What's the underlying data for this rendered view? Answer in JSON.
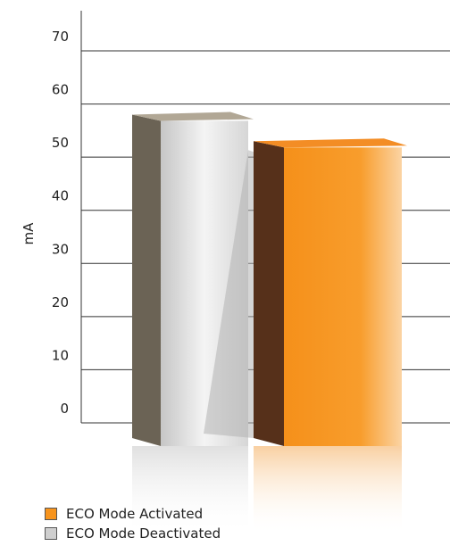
{
  "chart_data": {
    "type": "bar",
    "title": "",
    "xlabel": "",
    "ylabel": "mA",
    "ylim": [
      0,
      70
    ],
    "yticks": [
      0,
      10,
      20,
      30,
      40,
      50,
      60,
      70
    ],
    "grid": true,
    "legend_position": "bottom-left",
    "series": [
      {
        "name": "ECO Mode Deactivated",
        "value": 58,
        "color": "#d9d9d9"
      },
      {
        "name": "ECO Mode Activated",
        "value": 53,
        "color": "#f7941d"
      }
    ]
  },
  "legend": {
    "items": [
      {
        "label": "ECO Mode Activated",
        "color": "#f7941d"
      },
      {
        "label": "ECO Mode Deactivated",
        "color": "#cfcfcf"
      }
    ]
  }
}
